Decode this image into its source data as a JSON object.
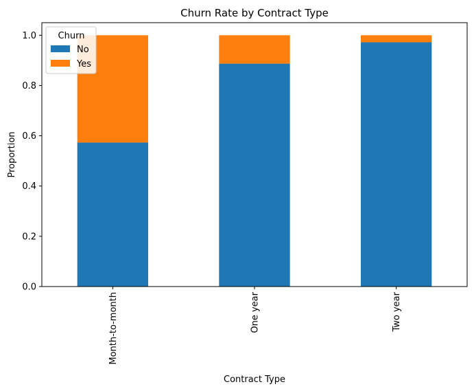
{
  "chart_data": {
    "type": "bar",
    "stacked": true,
    "title": "Churn Rate by Contract Type",
    "xlabel": "Contract Type",
    "ylabel": "Proportion",
    "categories": [
      "Month-to-month",
      "One year",
      "Two year"
    ],
    "series": [
      {
        "name": "No",
        "color": "#1f77b4",
        "values": [
          0.573,
          0.887,
          0.972
        ]
      },
      {
        "name": "Yes",
        "color": "#ff7f0e",
        "values": [
          0.427,
          0.113,
          0.028
        ]
      }
    ],
    "ylim": [
      0,
      1.05
    ],
    "yticks": [
      "0.0",
      "0.2",
      "0.4",
      "0.6",
      "0.8",
      "1.0"
    ],
    "grid": false,
    "legend": {
      "title": "Churn",
      "placement": "upper-left"
    }
  }
}
